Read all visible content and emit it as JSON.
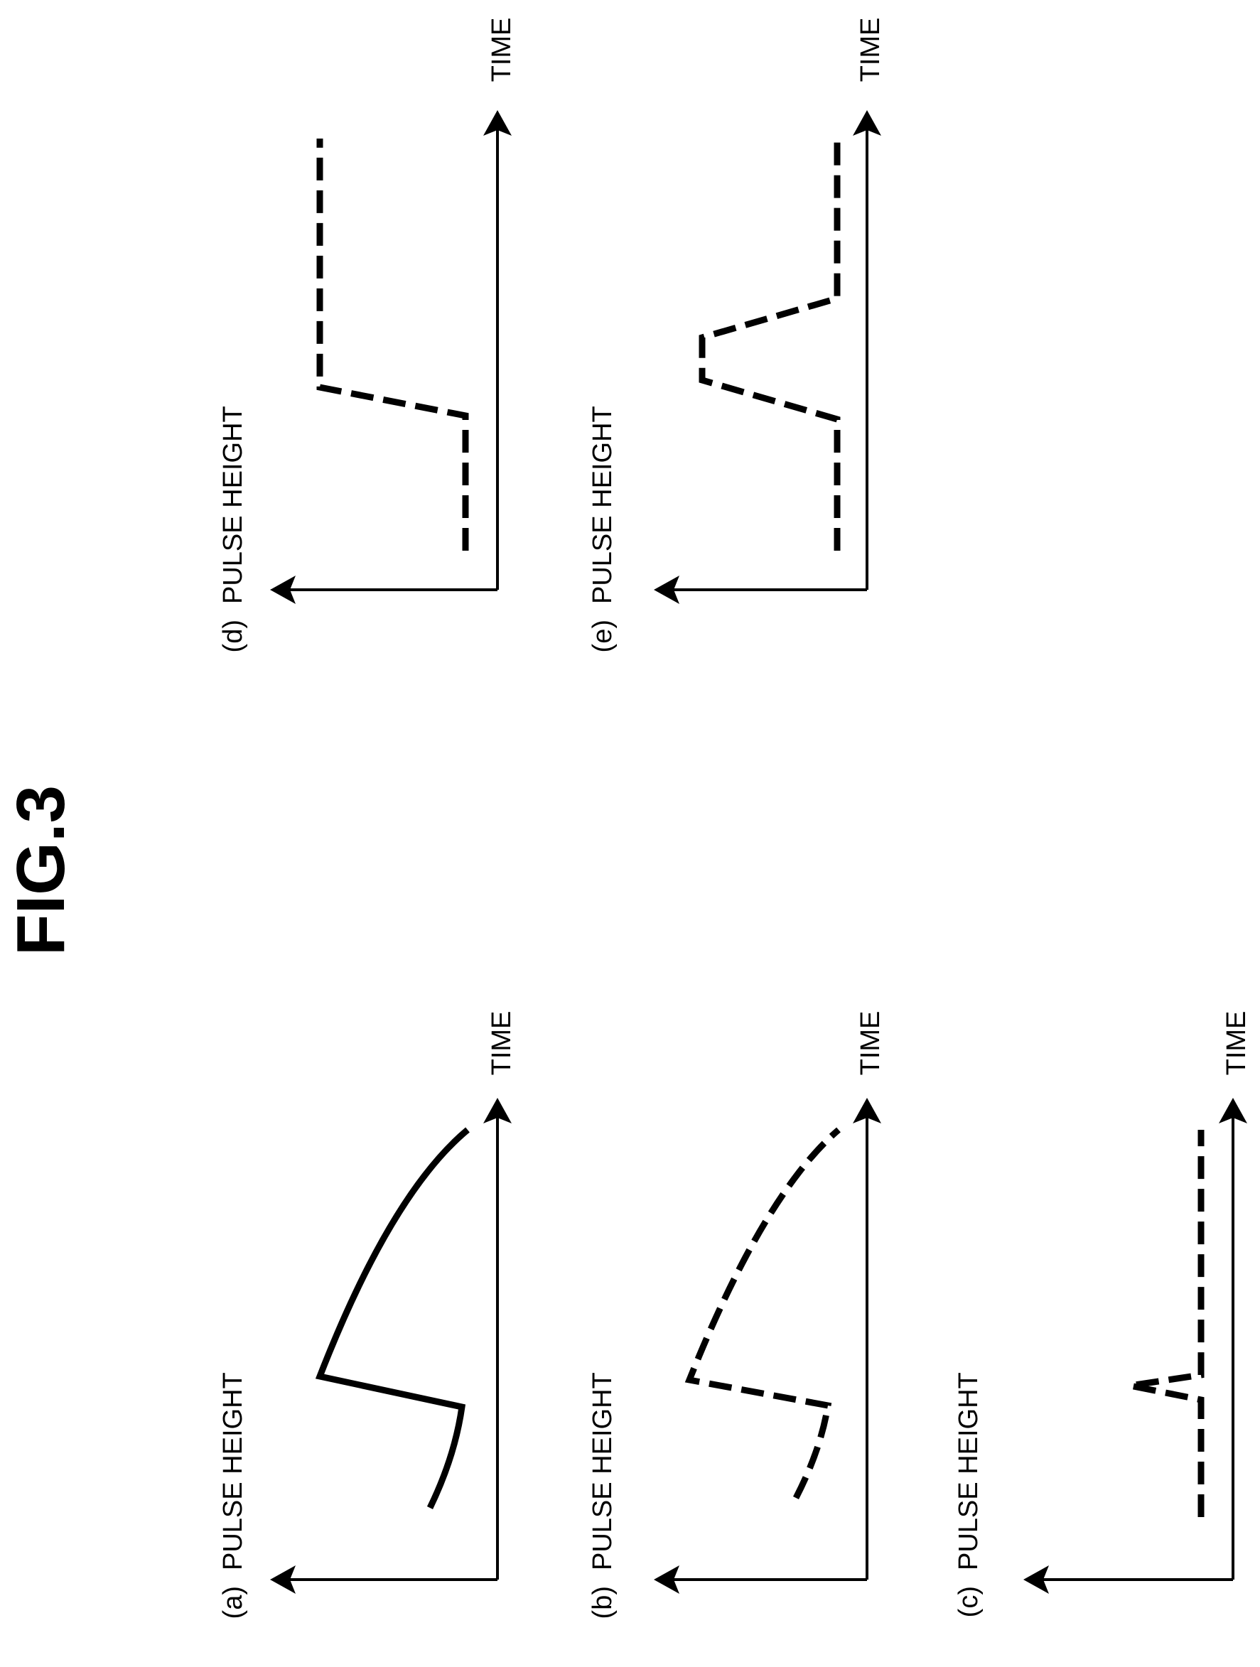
{
  "figure": {
    "title": "FIG.3",
    "panels": [
      {
        "id": "a",
        "tag": "(a)",
        "y_label": "PULSE HEIGHT",
        "x_label": "TIME",
        "line_style": "solid"
      },
      {
        "id": "b",
        "tag": "(b)",
        "y_label": "PULSE HEIGHT",
        "x_label": "TIME",
        "line_style": "dashed"
      },
      {
        "id": "c",
        "tag": "(c)",
        "y_label": "PULSE HEIGHT",
        "x_label": "TIME",
        "line_style": "dashed"
      },
      {
        "id": "d",
        "tag": "(d)",
        "y_label": "PULSE HEIGHT",
        "x_label": "TIME",
        "line_style": "dashed"
      },
      {
        "id": "e",
        "tag": "(e)",
        "y_label": "PULSE HEIGHT",
        "x_label": "TIME",
        "line_style": "dashed"
      }
    ]
  }
}
